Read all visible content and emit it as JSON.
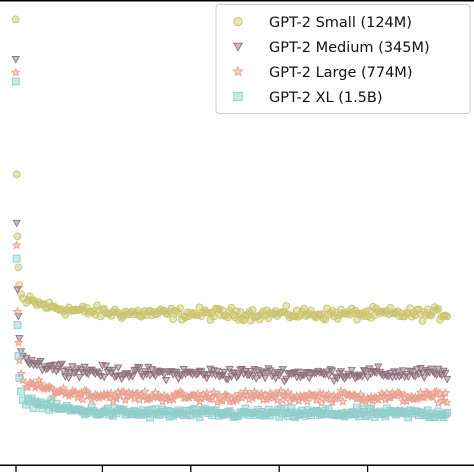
{
  "chart_data": {
    "type": "scatter",
    "title": "",
    "xlabel": "",
    "ylabel": "",
    "grid": false,
    "legend_position": "top-right",
    "x_range": [
      0,
      500
    ],
    "y_range": [
      0,
      100
    ],
    "series": [
      {
        "name": "GPT-2 Small (124M)",
        "marker": "circle",
        "color": "#c9c46a",
        "early": [
          [
            2,
            97
          ],
          [
            3,
            62
          ],
          [
            4,
            48
          ],
          [
            5,
            41
          ],
          [
            6,
            37
          ],
          [
            8,
            35
          ],
          [
            10,
            34
          ],
          [
            14,
            33
          ]
        ],
        "plateau": 30.5,
        "noise": 2.0
      },
      {
        "name": "GPT-2 Medium (345M)",
        "marker": "triangle-down",
        "color": "#8f6f7d",
        "early": [
          [
            2,
            88
          ],
          [
            3,
            51
          ],
          [
            4,
            36
          ],
          [
            5,
            30
          ],
          [
            6,
            25
          ],
          [
            8,
            22
          ],
          [
            10,
            21
          ],
          [
            14,
            20.5
          ]
        ],
        "plateau": 17.0,
        "noise": 2.0
      },
      {
        "name": "GPT-2 Large (774M)",
        "marker": "star",
        "color": "#e9a08f",
        "early": [
          [
            2,
            85
          ],
          [
            3,
            46
          ],
          [
            4,
            31
          ],
          [
            5,
            24
          ],
          [
            6,
            20
          ],
          [
            8,
            17
          ],
          [
            10,
            15.5
          ],
          [
            14,
            14
          ]
        ],
        "plateau": 11.8,
        "noise": 1.8
      },
      {
        "name": "GPT-2 XL (1.5B)",
        "marker": "square",
        "color": "#8ecdc9",
        "early": [
          [
            2,
            83
          ],
          [
            3,
            43
          ],
          [
            4,
            28
          ],
          [
            5,
            21
          ],
          [
            6,
            16
          ],
          [
            8,
            13
          ],
          [
            10,
            11
          ],
          [
            14,
            10
          ]
        ],
        "plateau": 8.0,
        "noise": 1.6
      }
    ]
  }
}
